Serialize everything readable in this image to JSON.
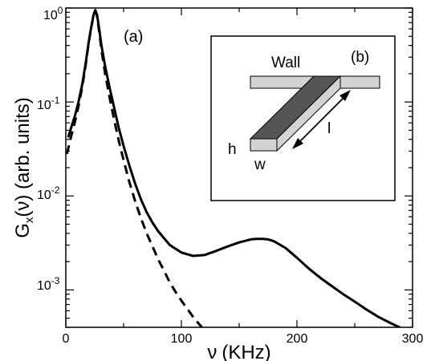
{
  "chart_data": {
    "type": "line",
    "xlabel_symbol": "ν",
    "xlabel_unit": "(KHz)",
    "ylabel_main": "G",
    "ylabel_sub": "x",
    "ylabel_rest": "(ν) (arb. units)",
    "xlim": [
      0,
      300
    ],
    "ylim": [
      0.0004,
      1.0
    ],
    "yscale": "log",
    "grid": false,
    "x_ticks": [
      {
        "value": 0,
        "label": "0"
      },
      {
        "value": 100,
        "label": "100"
      },
      {
        "value": 200,
        "label": "200"
      },
      {
        "value": 300,
        "label": "300"
      }
    ],
    "y_ticks": [
      {
        "value": 1,
        "label_base": "10",
        "label_exp": "0"
      },
      {
        "value": 0.1,
        "label_base": "10",
        "label_exp": "-1"
      },
      {
        "value": 0.01,
        "label_base": "10",
        "label_exp": "-2"
      },
      {
        "value": 0.001,
        "label_base": "10",
        "label_exp": "-3"
      }
    ],
    "panel_label": "(a)",
    "series": [
      {
        "style": "solid",
        "x": [
          2,
          5,
          8,
          11,
          14,
          17,
          20,
          22,
          24,
          25.5,
          27,
          29,
          31,
          34,
          38,
          42,
          46,
          50,
          55,
          60,
          65,
          70,
          75,
          80,
          90,
          100,
          110,
          120,
          130,
          140,
          150,
          160,
          165,
          170,
          175,
          180,
          190,
          200,
          210,
          220,
          230,
          240,
          250,
          260,
          270,
          280,
          285,
          289
        ],
        "y": [
          0.042,
          0.055,
          0.072,
          0.1,
          0.15,
          0.25,
          0.45,
          0.63,
          0.85,
          0.95,
          0.85,
          0.58,
          0.39,
          0.24,
          0.14,
          0.085,
          0.052,
          0.034,
          0.021,
          0.0135,
          0.0092,
          0.0067,
          0.0052,
          0.0042,
          0.003,
          0.0025,
          0.0023,
          0.00235,
          0.0026,
          0.0029,
          0.0032,
          0.00345,
          0.0035,
          0.0035,
          0.00345,
          0.0033,
          0.0028,
          0.0022,
          0.0017,
          0.00135,
          0.0011,
          0.0009,
          0.00075,
          0.00062,
          0.00052,
          0.00045,
          0.00042,
          0.0004
        ]
      },
      {
        "style": "dashed",
        "x": [
          1,
          5,
          8,
          11,
          14,
          17,
          20,
          22,
          24,
          25.5,
          27,
          29,
          31,
          34,
          38,
          42,
          46,
          50,
          55,
          60,
          65,
          70,
          75,
          80,
          85,
          90,
          95,
          100,
          110,
          120,
          126
        ],
        "y": [
          0.028,
          0.045,
          0.062,
          0.09,
          0.14,
          0.24,
          0.44,
          0.62,
          0.84,
          0.93,
          0.82,
          0.54,
          0.35,
          0.2,
          0.11,
          0.063,
          0.038,
          0.024,
          0.014,
          0.0088,
          0.0058,
          0.004,
          0.0029,
          0.0021,
          0.0016,
          0.0012,
          0.00095,
          0.00077,
          0.00052,
          0.00037,
          0.00031
        ]
      }
    ]
  },
  "inset": {
    "panel_label": "(b)",
    "wall_label": "Wall",
    "h_label": "h",
    "w_label": "w",
    "l_label": "l"
  }
}
